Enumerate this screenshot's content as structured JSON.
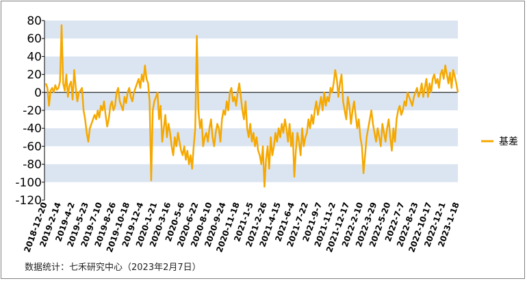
{
  "chart_data": {
    "type": "line",
    "title": "",
    "xlabel": "",
    "ylabel": "",
    "ylim": [
      -120,
      80
    ],
    "yticks": [
      "80",
      "60",
      "40",
      "20",
      "0",
      "-20",
      "-40",
      "-60",
      "-80",
      "-100",
      "-120"
    ],
    "grid": "alternating horizontal bands",
    "legend_position": "right",
    "x_tick_labels": [
      "2018-12-20",
      "2019-2-14",
      "2019-4-2",
      "2019-5-23",
      "2019-7-10",
      "2019-8-26",
      "2019-10-18",
      "2019-12-4",
      "2020-1-21",
      "2020-3-16",
      "2020-5-6",
      "2020-6-22",
      "2020-8-10",
      "2020-9-24",
      "2020-11-18",
      "2021-1-5",
      "2021-2-26",
      "2021-4-15",
      "2021-6-4",
      "2021-7-22",
      "2021-9-7",
      "2021-11-2",
      "2021-12-17",
      "2022-2-10",
      "2022-3-29",
      "2022-5-20",
      "2022-7-7",
      "2022-8-23",
      "2022-10-17",
      "2022-12-1",
      "2023-1-18"
    ],
    "series": [
      {
        "name": "基差",
        "color": "#f5a800",
        "values": [
          10,
          5,
          -15,
          2,
          5,
          0,
          8,
          3,
          5,
          12,
          75,
          10,
          2,
          20,
          -5,
          8,
          12,
          -8,
          25,
          5,
          -10,
          0,
          2,
          5,
          -20,
          -30,
          -45,
          -55,
          -40,
          -35,
          -30,
          -25,
          -30,
          -20,
          -28,
          -15,
          -20,
          -10,
          -25,
          -38,
          -30,
          -15,
          -10,
          -20,
          -15,
          0,
          5,
          -10,
          -15,
          -20,
          -5,
          -12,
          0,
          5,
          -5,
          -10,
          0,
          5,
          10,
          15,
          5,
          20,
          12,
          30,
          15,
          10,
          -10,
          -98,
          -20,
          -10,
          -5,
          0,
          -30,
          -15,
          -55,
          -40,
          -25,
          -50,
          -35,
          -45,
          -60,
          -70,
          -50,
          -60,
          -45,
          -55,
          -65,
          -70,
          -60,
          -75,
          -65,
          -80,
          -70,
          -85,
          -60,
          -40,
          63,
          -20,
          -40,
          -30,
          -60,
          -50,
          -45,
          -55,
          -40,
          -30,
          -50,
          -60,
          -45,
          -35,
          -40,
          -55,
          -30,
          -20,
          -25,
          -10,
          -20,
          0,
          5,
          -10,
          -5,
          -15,
          0,
          10,
          -5,
          -20,
          -30,
          -10,
          -40,
          -50,
          -35,
          -55,
          -45,
          -60,
          -50,
          -65,
          -70,
          -80,
          -60,
          -105,
          -75,
          -60,
          -85,
          -50,
          -70,
          -60,
          -45,
          -55,
          -40,
          -50,
          -35,
          -45,
          -30,
          -40,
          -55,
          -35,
          -60,
          -45,
          -94,
          -65,
          -45,
          -55,
          -70,
          -40,
          -60,
          -50,
          -45,
          -30,
          -40,
          -25,
          -35,
          -20,
          -10,
          -25,
          -15,
          -5,
          -20,
          0,
          -15,
          -5,
          -10,
          5,
          0,
          10,
          25,
          15,
          -5,
          10,
          20,
          -10,
          -20,
          -30,
          -5,
          -15,
          -35,
          -20,
          -10,
          -25,
          -40,
          -30,
          -50,
          -60,
          -90,
          -70,
          -50,
          -40,
          -30,
          -20,
          -35,
          -45,
          -55,
          -40,
          -50,
          -60,
          -35,
          -45,
          -55,
          -40,
          -30,
          -50,
          -65,
          -40,
          -55,
          -30,
          -20,
          -15,
          -25,
          -20,
          -10,
          -15,
          0,
          -5,
          -10,
          -15,
          -5,
          0,
          5,
          -5,
          0,
          10,
          -5,
          5,
          15,
          -5,
          10,
          0,
          15,
          20,
          10,
          15,
          5,
          20,
          25,
          15,
          30,
          20,
          10,
          22,
          5,
          25,
          18,
          10,
          0
        ]
      }
    ],
    "legend": [
      "基差"
    ]
  },
  "source_note": "数据统计：七禾研究中心（2023年2月7日）"
}
